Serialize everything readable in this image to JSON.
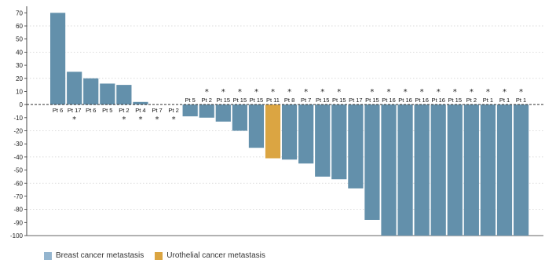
{
  "chart_data": {
    "type": "bar",
    "ylim": [
      -100,
      75
    ],
    "yticks": [
      70,
      60,
      50,
      40,
      30,
      20,
      10,
      0,
      -10,
      -20,
      -30,
      -40,
      -50,
      -60,
      -70,
      -80,
      -90,
      -100
    ],
    "colors": {
      "breast": "#6390ab",
      "urothelial": "#dba542",
      "zero_line": "#333333",
      "grid": "#cfcfcf"
    },
    "bars": [
      {
        "label": "Pt 6",
        "value": 70,
        "type": "breast",
        "star": false
      },
      {
        "label": "Pt 17",
        "value": 25,
        "type": "breast",
        "star": true
      },
      {
        "label": "Pt 6",
        "value": 20,
        "type": "breast",
        "star": false
      },
      {
        "label": "Pt 5",
        "value": 16,
        "type": "breast",
        "star": false
      },
      {
        "label": "Pt 2",
        "value": 15,
        "type": "breast",
        "star": true
      },
      {
        "label": "Pt 4",
        "value": 2,
        "type": "breast",
        "star": true
      },
      {
        "label": "Pt 7",
        "value": 0,
        "type": "breast",
        "star": true
      },
      {
        "label": "Pt 2",
        "value": 0,
        "type": "breast",
        "star": true
      },
      {
        "label": "Pt 5",
        "value": -9,
        "type": "breast",
        "star": false
      },
      {
        "label": "Pt 2",
        "value": -10,
        "type": "breast",
        "star": true
      },
      {
        "label": "Pt 15",
        "value": -13,
        "type": "breast",
        "star": true
      },
      {
        "label": "Pt 15",
        "value": -20,
        "type": "breast",
        "star": true
      },
      {
        "label": "Pt 15",
        "value": -33,
        "type": "breast",
        "star": true
      },
      {
        "label": "Pt 11",
        "value": -41,
        "type": "urothelial",
        "star": true
      },
      {
        "label": "Pt 8",
        "value": -42,
        "type": "breast",
        "star": true
      },
      {
        "label": "Pt 7",
        "value": -45,
        "type": "breast",
        "star": true
      },
      {
        "label": "Pt 15",
        "value": -55,
        "type": "breast",
        "star": true
      },
      {
        "label": "Pt 15",
        "value": -57,
        "type": "breast",
        "star": true
      },
      {
        "label": "Pt 17",
        "value": -64,
        "type": "breast",
        "star": false
      },
      {
        "label": "Pt 15",
        "value": -88,
        "type": "breast",
        "star": true
      },
      {
        "label": "Pt 16",
        "value": -100,
        "type": "breast",
        "star": true
      },
      {
        "label": "Pt 16",
        "value": -100,
        "type": "breast",
        "star": true
      },
      {
        "label": "Pt 16",
        "value": -100,
        "type": "breast",
        "star": true
      },
      {
        "label": "Pt 16",
        "value": -100,
        "type": "breast",
        "star": true
      },
      {
        "label": "Pt 15",
        "value": -100,
        "type": "breast",
        "star": true
      },
      {
        "label": "Pt 2",
        "value": -100,
        "type": "breast",
        "star": true
      },
      {
        "label": "Pt 1",
        "value": -100,
        "type": "breast",
        "star": true
      },
      {
        "label": "Pt 1",
        "value": -100,
        "type": "breast",
        "star": true
      },
      {
        "label": "Pt 1",
        "value": -100,
        "type": "breast",
        "star": true
      }
    ],
    "star_symbol": "*",
    "legend": [
      {
        "label": "Breast cancer metastasis",
        "type": "breast"
      },
      {
        "label": "Urothelial cancer metastasis",
        "type": "urothelial"
      }
    ]
  }
}
